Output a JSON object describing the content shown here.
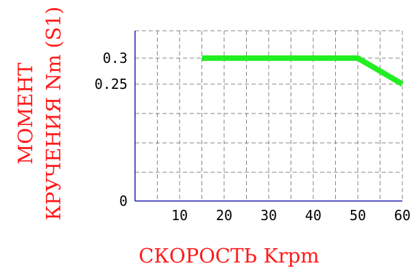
{
  "chart_data": {
    "type": "line",
    "title": "",
    "ylabel_line1": "МОМЕНТ",
    "ylabel_line2": "КРУЧЕНИЯ Nm (S1)",
    "xlabel": "СКОРОСТЬ Krpm",
    "xlim": [
      0,
      60
    ],
    "x_ticks": [
      10,
      20,
      30,
      40,
      50,
      60
    ],
    "y_ticks": [
      {
        "label": "0",
        "value": 0
      },
      {
        "label": "0.25",
        "value": 0.25
      },
      {
        "label": "0.3",
        "value": 0.3
      }
    ],
    "grid": true,
    "series": [
      {
        "color": "#22ee22",
        "x": [
          15,
          50,
          60
        ],
        "y": [
          0.3,
          0.3,
          0.25
        ]
      }
    ]
  }
}
